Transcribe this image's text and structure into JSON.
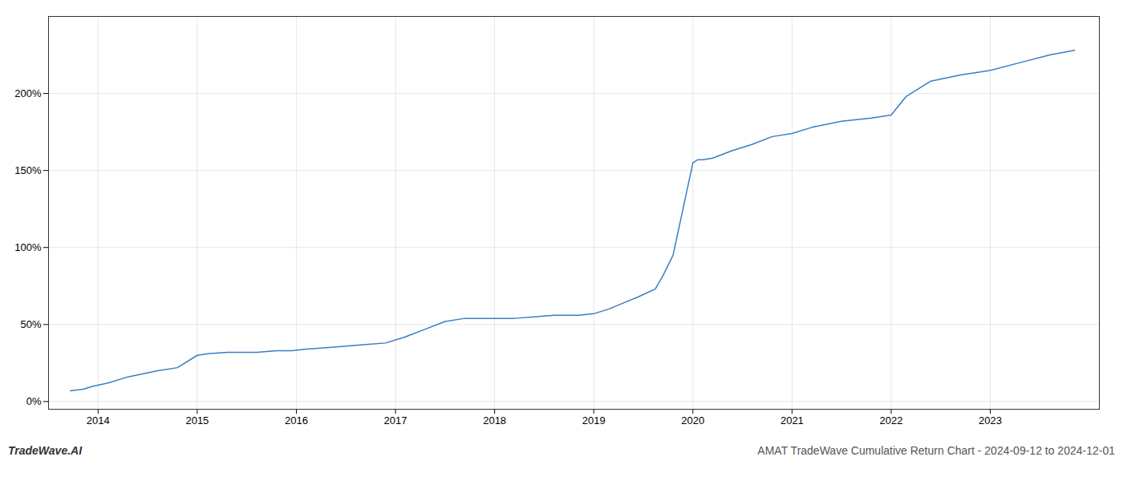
{
  "chart_data": {
    "type": "line",
    "title": "AMAT TradeWave Cumulative Return Chart - 2024-09-12 to 2024-12-01",
    "annotations": [
      "TradeWave.AI"
    ],
    "color": "#3a7ebf",
    "x": [
      2013.72,
      2013.85,
      2013.95,
      2014.1,
      2014.3,
      2014.6,
      2014.8,
      2015.0,
      2015.1,
      2015.3,
      2015.6,
      2015.8,
      2015.95,
      2016.1,
      2016.3,
      2016.5,
      2016.7,
      2016.9,
      2017.1,
      2017.3,
      2017.5,
      2017.7,
      2017.85,
      2018.0,
      2018.2,
      2018.4,
      2018.6,
      2018.85,
      2019.0,
      2019.15,
      2019.3,
      2019.45,
      2019.55,
      2019.62,
      2019.7,
      2019.8,
      2020.0,
      2020.05,
      2020.1,
      2020.2,
      2020.4,
      2020.6,
      2020.8,
      2021.0,
      2021.2,
      2021.5,
      2021.8,
      2022.0,
      2022.15,
      2022.4,
      2022.7,
      2022.9,
      2023.0,
      2023.3,
      2023.6,
      2023.85
    ],
    "values": [
      7,
      8,
      10,
      12,
      16,
      20,
      22,
      30,
      31,
      32,
      32,
      33,
      33,
      34,
      35,
      36,
      37,
      38,
      42,
      47,
      52,
      54,
      54,
      54,
      54,
      55,
      56,
      56,
      57,
      60,
      64,
      68,
      71,
      73,
      82,
      95,
      155,
      157,
      157,
      158,
      163,
      167,
      172,
      174,
      178,
      182,
      184,
      186,
      198,
      208,
      212,
      214,
      215,
      220,
      225,
      228
    ],
    "xlim": [
      2013.5,
      2024.1
    ],
    "ylim": [
      -5,
      250
    ],
    "xticks": [
      2014,
      2015,
      2016,
      2017,
      2018,
      2019,
      2020,
      2021,
      2022,
      2023
    ],
    "yticks": [
      {
        "value": 0,
        "label": "0%"
      },
      {
        "value": 50,
        "label": "50%"
      },
      {
        "value": 100,
        "label": "100%"
      },
      {
        "value": 150,
        "label": "150%"
      },
      {
        "value": 200,
        "label": "200%"
      }
    ],
    "grid": true
  }
}
